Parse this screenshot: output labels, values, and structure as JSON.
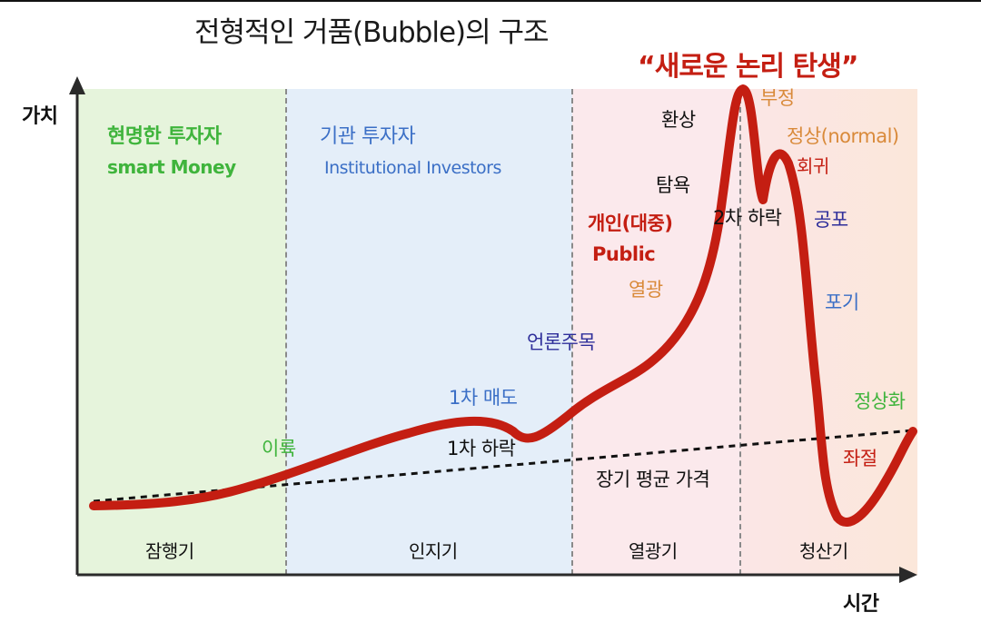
{
  "title": "전형적인 거품(Bubble)의 구조",
  "headline": "“새로운 논리 탄생”",
  "axes": {
    "y_label": "가치",
    "x_label": "시간"
  },
  "investors": {
    "smart": {
      "kor": "현명한 투자자",
      "eng": "smart Money"
    },
    "institutional": {
      "kor": "기관 투자자",
      "eng": "Institutional Investors"
    },
    "public": {
      "kor": "개인(대중)",
      "eng": "Public"
    }
  },
  "phases": [
    "잠행기",
    "인지기",
    "열광기",
    "청산기"
  ],
  "annotations": {
    "profit": "이륙",
    "first_sell": "1차 매도",
    "first_drop": "1차 하락",
    "media": "언론주목",
    "frenzy": "열광",
    "greed": "탐욕",
    "illusion": "환상",
    "denial": "부정",
    "normal": "정상(normal)",
    "return": "회귀",
    "second_drop": "2차 하락",
    "fear": "공포",
    "giving_up": "포기",
    "normalize": "정상화",
    "despair": "좌절",
    "long_avg": "장기 평균 가격"
  },
  "colors": {
    "curve": "#c41e12",
    "zone_stealth": "#e6f4dc",
    "zone_awareness": "#e4eef9",
    "zone_mania": "#fbe9ec",
    "zone_blowoff": "#fbe6e6"
  }
}
